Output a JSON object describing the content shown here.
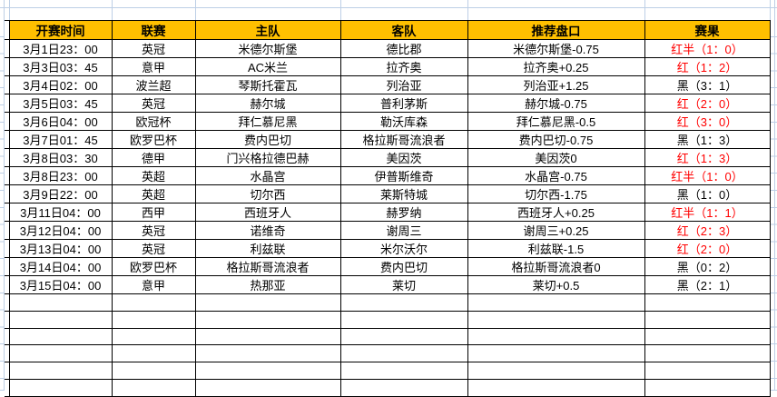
{
  "table": {
    "headers": [
      "开赛时间",
      "联赛",
      "主队",
      "客队",
      "推荐盘口",
      "赛果"
    ],
    "rows": [
      {
        "time": "3月1日23：00",
        "league": "英冠",
        "home": "米德尔斯堡",
        "away": "德比郡",
        "handicap": "米德尔斯堡-0.75",
        "result": "红半（1：0）",
        "result_color": "#FF0000"
      },
      {
        "time": "3月3日03：45",
        "league": "意甲",
        "home": "AC米兰",
        "away": "拉齐奥",
        "handicap": "拉齐奥+0.25",
        "result": "红（1：2）",
        "result_color": "#FF0000"
      },
      {
        "time": "3月4日02：00",
        "league": "波兰超",
        "home": "琴斯托霍瓦",
        "away": "列治亚",
        "handicap": "列治亚+1.25",
        "result": "黑（3：1）",
        "result_color": "#000000"
      },
      {
        "time": "3月5日03：45",
        "league": "英冠",
        "home": "赫尔城",
        "away": "普利茅斯",
        "handicap": "赫尔城-0.75",
        "result": "红（2：0）",
        "result_color": "#FF0000"
      },
      {
        "time": "3月6日04：00",
        "league": "欧冠杯",
        "home": "拜仁慕尼黑",
        "away": "勒沃库森",
        "handicap": "拜仁慕尼黑-0.5",
        "result": "红（3：0）",
        "result_color": "#FF0000"
      },
      {
        "time": "3月7日01：45",
        "league": "欧罗巴杯",
        "home": "费内巴切",
        "away": "格拉斯哥流浪者",
        "handicap": "费内巴切-0.75",
        "result": "黑（1：3）",
        "result_color": "#000000"
      },
      {
        "time": "3月8日03：30",
        "league": "德甲",
        "home": "门兴格拉德巴赫",
        "away": "美因茨",
        "handicap": "美因茨0",
        "result": "红（1：3）",
        "result_color": "#FF0000"
      },
      {
        "time": "3月8日23：00",
        "league": "英超",
        "home": "水晶宫",
        "away": "伊普斯维奇",
        "handicap": "水晶宫-0.75",
        "result": "红半（1：0）",
        "result_color": "#FF0000"
      },
      {
        "time": "3月9日22：00",
        "league": "英超",
        "home": "切尔西",
        "away": "莱斯特城",
        "handicap": "切尔西-1.75",
        "result": "黑（1：0）",
        "result_color": "#000000"
      },
      {
        "time": "3月11日04：00",
        "league": "西甲",
        "home": "西班牙人",
        "away": "赫罗纳",
        "handicap": "西班牙人+0.25",
        "result": "红半（1：1）",
        "result_color": "#FF0000"
      },
      {
        "time": "3月12日04：00",
        "league": "英冠",
        "home": "诺维奇",
        "away": "谢周三",
        "handicap": "谢周三+0.25",
        "result": "红（2：3）",
        "result_color": "#FF0000"
      },
      {
        "time": "3月13日04：00",
        "league": "英冠",
        "home": "利兹联",
        "away": "米尔沃尔",
        "handicap": "利兹联-1.5",
        "result": "红（2：0）",
        "result_color": "#FF0000"
      },
      {
        "time": "3月14日04：00",
        "league": "欧罗巴杯",
        "home": "格拉斯哥流浪者",
        "away": "费内巴切",
        "handicap": "格拉斯哥流浪者0",
        "result": "黑（0：2）",
        "result_color": "#000000"
      },
      {
        "time": "3月15日04：00",
        "league": "意甲",
        "home": "热那亚",
        "away": "莱切",
        "handicap": "莱切+0.5",
        "result": "黑（2：1）",
        "result_color": "#000000"
      }
    ],
    "empty_row_count": 6
  },
  "colors": {
    "header_bg": "#FFC000",
    "border": "#000000",
    "gridline": "#BDCFE6",
    "result_red": "#FF0000",
    "result_black": "#000000"
  }
}
